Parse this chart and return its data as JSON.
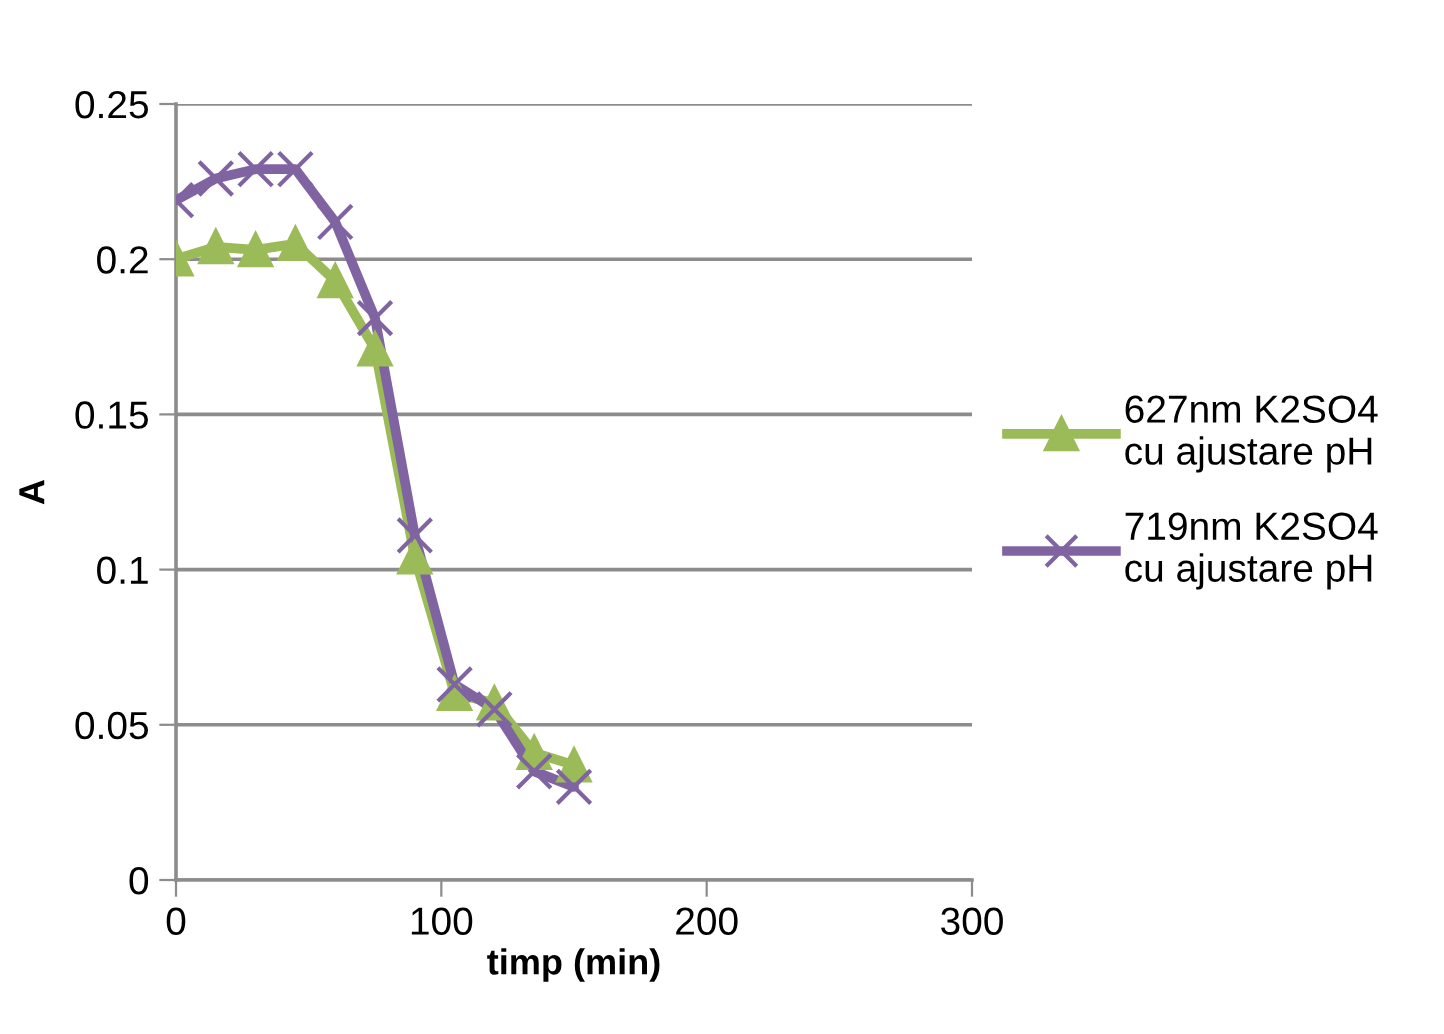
{
  "chart_data": {
    "type": "line",
    "xlabel": "timp (min)",
    "ylabel": "A",
    "x": [
      0,
      15,
      30,
      45,
      60,
      75,
      90,
      105,
      120,
      135,
      150
    ],
    "series": [
      {
        "name": "627nm K2SO4\ncu ajustare pH",
        "color": "#9bbb59",
        "marker": "triangle",
        "values": [
          0.2,
          0.204,
          0.203,
          0.205,
          0.193,
          0.171,
          0.104,
          0.06,
          0.057,
          0.041,
          0.037
        ]
      },
      {
        "name": "719nm K2SO4\ncu ajustare pH",
        "color": "#8064a2",
        "marker": "cross",
        "values": [
          0.219,
          0.226,
          0.229,
          0.229,
          0.212,
          0.181,
          0.111,
          0.063,
          0.055,
          0.035,
          0.03
        ]
      }
    ],
    "xlim": [
      0,
      300
    ],
    "xticks": [
      0,
      100,
      200,
      300
    ],
    "ylim": [
      0,
      0.25
    ],
    "yticks": [
      0,
      0.05,
      0.1,
      0.15,
      0.2,
      0.25
    ],
    "grid": "y",
    "legend": "right",
    "line_style": "solid"
  }
}
